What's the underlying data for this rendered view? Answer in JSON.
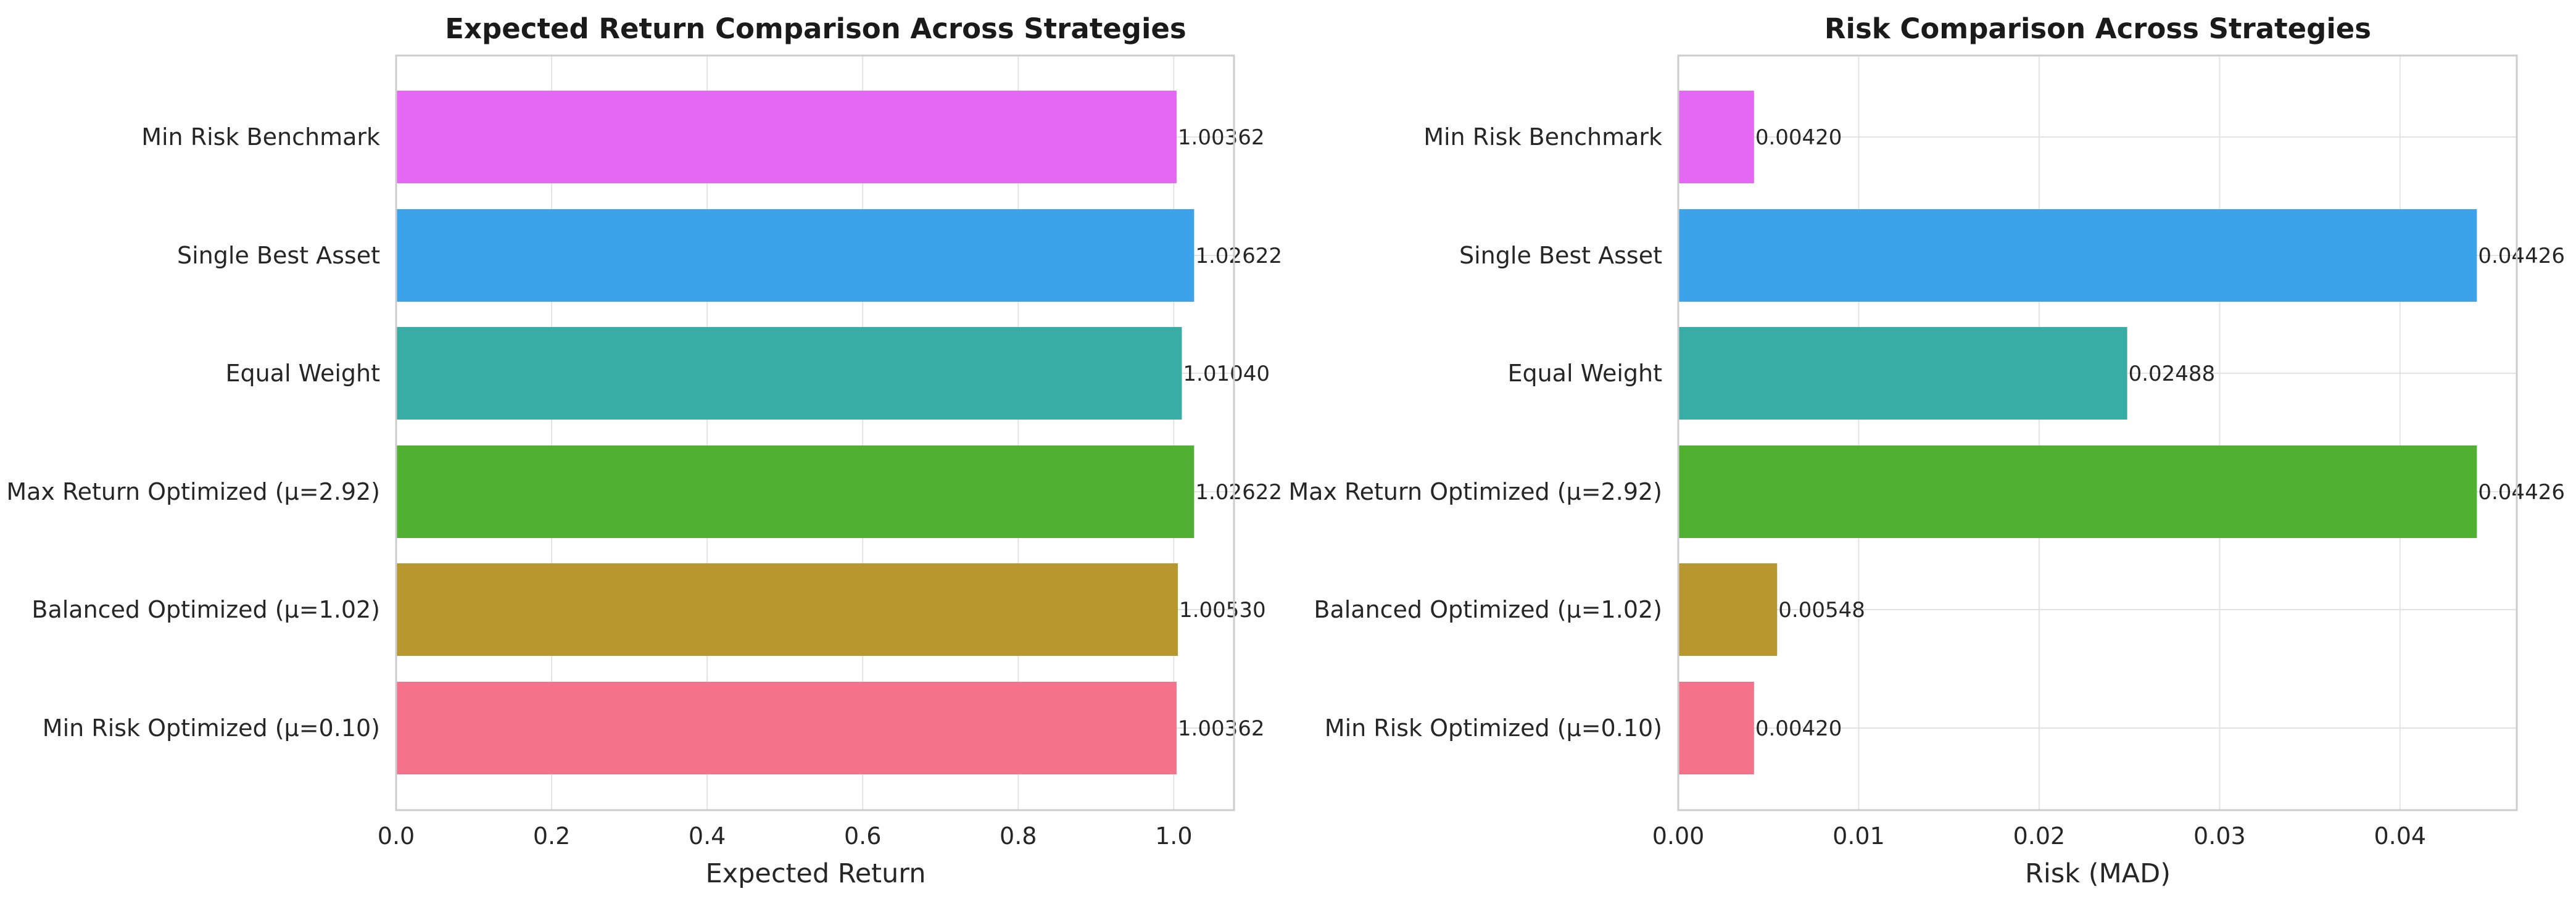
{
  "chart_data": [
    {
      "type": "bar",
      "orientation": "horizontal",
      "title": "Expected Return Comparison Across Strategies",
      "xlabel": "Expected Return",
      "ylabel": "",
      "xlim": [
        0,
        1.0775
      ],
      "xticks": [
        0.0,
        0.2,
        0.4,
        0.6,
        0.8,
        1.0
      ],
      "xtick_labels": [
        "0.0",
        "0.2",
        "0.4",
        "0.6",
        "0.8",
        "1.0"
      ],
      "grid": true,
      "categories": [
        "Min Risk Benchmark",
        "Single Best Asset",
        "Equal Weight",
        "Max Return Optimized (μ=2.92)",
        "Balanced Optimized (μ=1.02)",
        "Min Risk Optimized (μ=0.10)"
      ],
      "values": [
        1.00362,
        1.02622,
        1.0104,
        1.02622,
        1.0053,
        1.00362
      ],
      "value_labels": [
        "1.00362",
        "1.02622",
        "1.01040",
        "1.02622",
        "1.00530",
        "1.00362"
      ],
      "colors": [
        "#e568f5",
        "#3ca3ea",
        "#38ada5",
        "#50b032",
        "#b9972f",
        "#f5738a"
      ]
    },
    {
      "type": "bar",
      "orientation": "horizontal",
      "title": "Risk Comparison Across Strategies",
      "xlabel": "Risk (MAD)",
      "ylabel": "",
      "xlim": [
        0,
        0.04647
      ],
      "xticks": [
        0.0,
        0.01,
        0.02,
        0.03,
        0.04
      ],
      "xtick_labels": [
        "0.00",
        "0.01",
        "0.02",
        "0.03",
        "0.04"
      ],
      "grid": true,
      "categories": [
        "Min Risk Benchmark",
        "Single Best Asset",
        "Equal Weight",
        "Max Return Optimized (μ=2.92)",
        "Balanced Optimized (μ=1.02)",
        "Min Risk Optimized (μ=0.10)"
      ],
      "values": [
        0.0042,
        0.04426,
        0.02488,
        0.04426,
        0.00548,
        0.0042
      ],
      "value_labels": [
        "0.00420",
        "0.04426",
        "0.02488",
        "0.04426",
        "0.00548",
        "0.00420"
      ],
      "colors": [
        "#e568f5",
        "#3ca3ea",
        "#38ada5",
        "#50b032",
        "#b9972f",
        "#f5738a"
      ]
    }
  ]
}
